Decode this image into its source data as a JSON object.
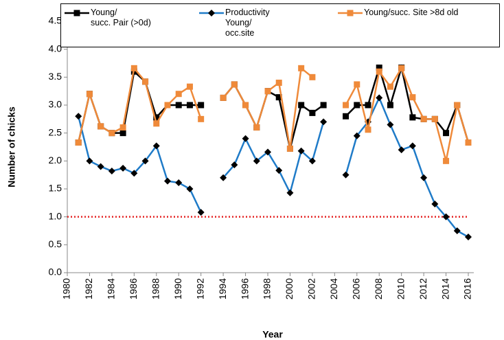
{
  "chart_data": {
    "type": "line",
    "x_label": "Year",
    "y_label": "Number of chicks",
    "x": [
      1981,
      1982,
      1983,
      1984,
      1985,
      1986,
      1987,
      1988,
      1989,
      1990,
      1991,
      1992,
      1993,
      1994,
      1995,
      1996,
      1997,
      1998,
      1999,
      2000,
      2001,
      2002,
      2003,
      2004,
      2005,
      2006,
      2007,
      2008,
      2009,
      2010,
      2011,
      2012,
      2013,
      2014,
      2015,
      2016
    ],
    "series": [
      {
        "name": "Young/\nsucc. Pair (>0d)",
        "color": "#000000",
        "marker": "square",
        "values": [
          2.33,
          3.2,
          2.62,
          2.5,
          2.5,
          3.6,
          3.42,
          2.78,
          3.0,
          3.0,
          3.0,
          3.0,
          null,
          3.13,
          3.37,
          3.0,
          2.6,
          3.25,
          3.14,
          2.22,
          3.0,
          2.86,
          3.0,
          null,
          2.8,
          3.0,
          3.0,
          3.67,
          3.0,
          3.67,
          2.78,
          2.75,
          2.75,
          2.5,
          3.0,
          2.33
        ]
      },
      {
        "name": "Productivity\nYoung/\nocc.site",
        "color": "#1f7bc8",
        "marker": "diamond",
        "values": [
          2.8,
          2.0,
          1.9,
          1.82,
          1.87,
          1.78,
          2.0,
          2.27,
          1.64,
          1.61,
          1.5,
          1.08,
          null,
          1.7,
          1.93,
          2.4,
          2.0,
          2.16,
          1.83,
          1.43,
          2.18,
          2.0,
          2.7,
          null,
          1.75,
          2.45,
          2.7,
          3.13,
          2.65,
          2.2,
          2.27,
          1.7,
          1.23,
          1.0,
          0.75,
          0.64
        ]
      },
      {
        "name": "Young/succ. Site >8d old",
        "color": "#ef8a3a",
        "marker": "square",
        "values": [
          2.33,
          3.2,
          2.62,
          2.5,
          2.6,
          3.66,
          3.42,
          2.67,
          3.0,
          3.2,
          3.33,
          2.75,
          null,
          3.13,
          3.37,
          3.0,
          2.6,
          3.25,
          3.4,
          2.22,
          3.66,
          3.5,
          null,
          null,
          3.0,
          3.37,
          2.56,
          3.6,
          3.33,
          3.66,
          3.14,
          2.75,
          2.75,
          2.0,
          3.0,
          2.33
        ]
      }
    ],
    "reference_line": {
      "value": 1.0,
      "color": "#e52222"
    },
    "xlim": [
      1980,
      2016
    ],
    "xticks": [
      1980,
      1982,
      1984,
      1986,
      1988,
      1990,
      1992,
      1994,
      1996,
      1998,
      2000,
      2002,
      2004,
      2006,
      2008,
      2010,
      2012,
      2014,
      2016
    ],
    "ylim": [
      0,
      4.5
    ],
    "yticks": [
      {
        "value": 0,
        "label": "0.0"
      },
      {
        "value": 0.5,
        "label": "0.5"
      },
      {
        "value": 1,
        "label": "1.0"
      },
      {
        "value": 1.5,
        "label": "1.5"
      },
      {
        "value": 2,
        "label": "2.0"
      },
      {
        "value": 2.5,
        "label": "2.5"
      },
      {
        "value": 3,
        "label": "3.0"
      },
      {
        "value": 3.5,
        "label": "3.5"
      },
      {
        "value": 4,
        "label": "4.0"
      },
      {
        "value": 4.5,
        "label": "4.5"
      }
    ],
    "grid": false
  }
}
